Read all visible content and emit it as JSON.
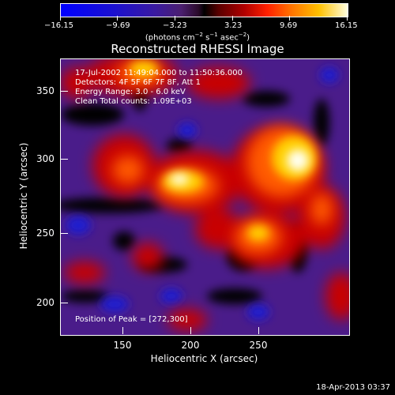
{
  "colorbar": {
    "labels": [
      "−16.15",
      "−9.69",
      "−3.23",
      "3.23",
      "9.69",
      "16.15"
    ],
    "units_prefix": "(photons cm",
    "units_sup1": "−2",
    "units_mid1": " s",
    "units_sup2": "−1",
    "units_mid2": " asec",
    "units_sup3": "−2",
    "units_suffix": ")"
  },
  "title": "Reconstructed RHESSI Image",
  "info": {
    "time": "17-Jul-2002 11:49:04.000 to 11:50:36.000",
    "detectors": "Detectors: 4F 5F 6F 7F 8F, Att 1",
    "energy": "Energy Range: 3.0 - 6.0 keV",
    "clean": "Clean     Total counts: 1.09E+03"
  },
  "peak": "Position of Peak = [272,300]",
  "axes": {
    "xlabel": "Heliocentric X (arcsec)",
    "ylabel": "Heliocentric Y (arcsec)",
    "xticks": [
      "150",
      "200",
      "250"
    ],
    "yticks": [
      "350",
      "300",
      "250",
      "200"
    ]
  },
  "timestamp": "18-Apr-2013 03:37"
}
